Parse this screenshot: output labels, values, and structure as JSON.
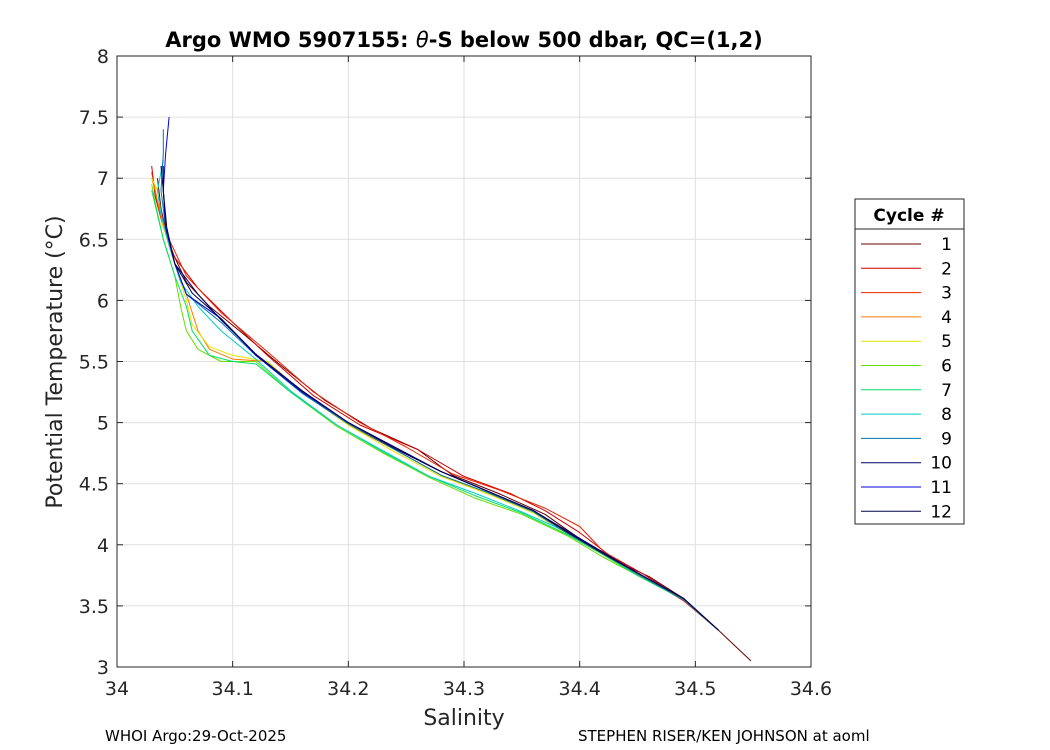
{
  "chart_data": {
    "type": "line",
    "title_prefix": "Argo WMO 5907155: ",
    "title_theta": "θ",
    "title_suffix": "-S below 500 dbar,  QC=(1,2)",
    "xlabel": "Salinity",
    "ylabel": "Potential Temperature (°C)",
    "xlim": [
      34.0,
      34.6
    ],
    "ylim": [
      3.0,
      8.0
    ],
    "xticks": [
      34.0,
      34.1,
      34.2,
      34.3,
      34.4,
      34.5,
      34.6
    ],
    "xtick_labels": [
      "34",
      "34.1",
      "34.2",
      "34.3",
      "34.4",
      "34.5",
      "34.6"
    ],
    "yticks": [
      3.0,
      3.5,
      4.0,
      4.5,
      5.0,
      5.5,
      6.0,
      6.5,
      7.0,
      7.5,
      8.0
    ],
    "ytick_labels": [
      "3",
      "3.5",
      "4",
      "4.5",
      "5",
      "5.5",
      "6",
      "6.5",
      "7",
      "7.5",
      "8"
    ],
    "grid": true,
    "legend_title": "Cycle #",
    "legend_position": "outside-right",
    "series": [
      {
        "name": "1",
        "color": "#660000",
        "points": [
          [
            34.548,
            3.05
          ],
          [
            34.52,
            3.3
          ],
          [
            34.49,
            3.56
          ],
          [
            34.46,
            3.74
          ],
          [
            34.43,
            3.87
          ],
          [
            34.4,
            4.05
          ],
          [
            34.37,
            4.25
          ],
          [
            34.33,
            4.42
          ],
          [
            34.29,
            4.57
          ],
          [
            34.26,
            4.78
          ],
          [
            34.22,
            4.95
          ],
          [
            34.18,
            5.18
          ],
          [
            34.14,
            5.48
          ],
          [
            34.11,
            5.72
          ],
          [
            34.08,
            5.95
          ],
          [
            34.06,
            6.15
          ],
          [
            34.045,
            6.45
          ],
          [
            34.038,
            6.75
          ],
          [
            34.035,
            7.0
          ]
        ]
      },
      {
        "name": "2",
        "color": "#cc0000",
        "points": [
          [
            34.52,
            3.3
          ],
          [
            34.49,
            3.55
          ],
          [
            34.455,
            3.76
          ],
          [
            34.425,
            3.92
          ],
          [
            34.4,
            4.1
          ],
          [
            34.37,
            4.28
          ],
          [
            34.34,
            4.42
          ],
          [
            34.3,
            4.56
          ],
          [
            34.26,
            4.78
          ],
          [
            34.21,
            4.98
          ],
          [
            34.17,
            5.22
          ],
          [
            34.13,
            5.55
          ],
          [
            34.1,
            5.82
          ],
          [
            34.07,
            6.1
          ],
          [
            34.05,
            6.35
          ],
          [
            34.04,
            6.6
          ],
          [
            34.033,
            6.85
          ],
          [
            34.03,
            7.1
          ]
        ]
      },
      {
        "name": "3",
        "color": "#ee2200",
        "points": [
          [
            34.52,
            3.3
          ],
          [
            34.49,
            3.54
          ],
          [
            34.45,
            3.77
          ],
          [
            34.42,
            3.95
          ],
          [
            34.4,
            4.15
          ],
          [
            34.37,
            4.3
          ],
          [
            34.33,
            4.45
          ],
          [
            34.29,
            4.58
          ],
          [
            34.25,
            4.8
          ],
          [
            34.21,
            5.0
          ],
          [
            34.17,
            5.25
          ],
          [
            34.13,
            5.58
          ],
          [
            34.09,
            5.9
          ],
          [
            34.06,
            6.2
          ],
          [
            34.045,
            6.5
          ],
          [
            34.035,
            6.8
          ],
          [
            34.03,
            7.05
          ]
        ]
      },
      {
        "name": "4",
        "color": "#ff7700",
        "points": [
          [
            34.52,
            3.3
          ],
          [
            34.49,
            3.55
          ],
          [
            34.45,
            3.76
          ],
          [
            34.42,
            3.94
          ],
          [
            34.39,
            4.1
          ],
          [
            34.36,
            4.28
          ],
          [
            34.32,
            4.42
          ],
          [
            34.28,
            4.57
          ],
          [
            34.24,
            4.78
          ],
          [
            34.2,
            4.98
          ],
          [
            34.16,
            5.25
          ],
          [
            34.13,
            5.5
          ],
          [
            34.1,
            5.52
          ],
          [
            34.08,
            5.6
          ],
          [
            34.07,
            5.75
          ],
          [
            34.065,
            5.9
          ],
          [
            34.06,
            6.05
          ],
          [
            34.05,
            6.3
          ],
          [
            34.04,
            6.6
          ],
          [
            34.033,
            6.9
          ],
          [
            34.03,
            7.0
          ]
        ]
      },
      {
        "name": "5",
        "color": "#e6e600",
        "points": [
          [
            34.52,
            3.3
          ],
          [
            34.49,
            3.55
          ],
          [
            34.45,
            3.75
          ],
          [
            34.42,
            3.92
          ],
          [
            34.39,
            4.08
          ],
          [
            34.36,
            4.26
          ],
          [
            34.32,
            4.42
          ],
          [
            34.28,
            4.56
          ],
          [
            34.24,
            4.76
          ],
          [
            34.2,
            4.98
          ],
          [
            34.16,
            5.25
          ],
          [
            34.13,
            5.5
          ],
          [
            34.1,
            5.55
          ],
          [
            34.08,
            5.62
          ],
          [
            34.065,
            5.8
          ],
          [
            34.06,
            6.0
          ],
          [
            34.05,
            6.3
          ],
          [
            34.04,
            6.6
          ],
          [
            34.035,
            6.9
          ],
          [
            34.03,
            7.0
          ]
        ]
      },
      {
        "name": "6",
        "color": "#66dd00",
        "points": [
          [
            34.52,
            3.3
          ],
          [
            34.49,
            3.55
          ],
          [
            34.45,
            3.75
          ],
          [
            34.42,
            3.9
          ],
          [
            34.39,
            4.07
          ],
          [
            34.35,
            4.25
          ],
          [
            34.31,
            4.38
          ],
          [
            34.27,
            4.55
          ],
          [
            34.23,
            4.75
          ],
          [
            34.19,
            4.97
          ],
          [
            34.15,
            5.25
          ],
          [
            34.12,
            5.5
          ],
          [
            34.09,
            5.5
          ],
          [
            34.07,
            5.6
          ],
          [
            34.06,
            5.75
          ],
          [
            34.055,
            5.95
          ],
          [
            34.05,
            6.2
          ],
          [
            34.04,
            6.5
          ],
          [
            34.033,
            6.8
          ],
          [
            34.03,
            6.95
          ]
        ]
      },
      {
        "name": "7",
        "color": "#00dd66",
        "points": [
          [
            34.52,
            3.3
          ],
          [
            34.49,
            3.55
          ],
          [
            34.45,
            3.75
          ],
          [
            34.42,
            3.92
          ],
          [
            34.39,
            4.08
          ],
          [
            34.35,
            4.26
          ],
          [
            34.31,
            4.4
          ],
          [
            34.27,
            4.56
          ],
          [
            34.23,
            4.76
          ],
          [
            34.19,
            4.98
          ],
          [
            34.15,
            5.25
          ],
          [
            34.12,
            5.48
          ],
          [
            34.1,
            5.5
          ],
          [
            34.08,
            5.55
          ],
          [
            34.065,
            5.75
          ],
          [
            34.06,
            5.95
          ],
          [
            34.05,
            6.2
          ],
          [
            34.04,
            6.5
          ],
          [
            34.035,
            6.7
          ],
          [
            34.03,
            6.9
          ]
        ]
      },
      {
        "name": "8",
        "color": "#00cccc",
        "points": [
          [
            34.52,
            3.3
          ],
          [
            34.49,
            3.55
          ],
          [
            34.45,
            3.77
          ],
          [
            34.42,
            3.93
          ],
          [
            34.39,
            4.1
          ],
          [
            34.35,
            4.27
          ],
          [
            34.31,
            4.42
          ],
          [
            34.27,
            4.56
          ],
          [
            34.23,
            4.77
          ],
          [
            34.19,
            4.98
          ],
          [
            34.15,
            5.26
          ],
          [
            34.12,
            5.52
          ],
          [
            34.09,
            5.75
          ],
          [
            34.07,
            5.95
          ],
          [
            34.055,
            6.15
          ],
          [
            34.045,
            6.45
          ],
          [
            34.038,
            6.7
          ],
          [
            34.035,
            6.9
          ],
          [
            34.04,
            7.15
          ]
        ]
      },
      {
        "name": "9",
        "color": "#0077aa",
        "points": [
          [
            34.52,
            3.3
          ],
          [
            34.49,
            3.55
          ],
          [
            34.45,
            3.76
          ],
          [
            34.42,
            3.93
          ],
          [
            34.39,
            4.09
          ],
          [
            34.36,
            4.27
          ],
          [
            34.32,
            4.43
          ],
          [
            34.28,
            4.57
          ],
          [
            34.24,
            4.78
          ],
          [
            34.2,
            4.99
          ],
          [
            34.16,
            5.24
          ],
          [
            34.12,
            5.55
          ],
          [
            34.09,
            5.82
          ],
          [
            34.06,
            6.05
          ],
          [
            34.05,
            6.3
          ],
          [
            34.042,
            6.6
          ],
          [
            34.038,
            6.9
          ],
          [
            34.04,
            7.2
          ],
          [
            34.04,
            7.4
          ]
        ]
      },
      {
        "name": "10",
        "color": "#000066",
        "points": [
          [
            34.52,
            3.3
          ],
          [
            34.49,
            3.56
          ],
          [
            34.45,
            3.77
          ],
          [
            34.42,
            3.94
          ],
          [
            34.39,
            4.11
          ],
          [
            34.36,
            4.28
          ],
          [
            34.32,
            4.44
          ],
          [
            34.28,
            4.6
          ],
          [
            34.24,
            4.8
          ],
          [
            34.2,
            5.0
          ],
          [
            34.16,
            5.26
          ],
          [
            34.12,
            5.56
          ],
          [
            34.09,
            5.84
          ],
          [
            34.07,
            6.05
          ],
          [
            34.05,
            6.3
          ],
          [
            34.042,
            6.6
          ],
          [
            34.04,
            6.9
          ],
          [
            34.038,
            7.1
          ]
        ]
      },
      {
        "name": "11",
        "color": "#0000dd",
        "points": [
          [
            34.52,
            3.3
          ],
          [
            34.49,
            3.56
          ],
          [
            34.45,
            3.77
          ],
          [
            34.42,
            3.93
          ],
          [
            34.39,
            4.1
          ],
          [
            34.36,
            4.28
          ],
          [
            34.32,
            4.44
          ],
          [
            34.28,
            4.6
          ],
          [
            34.24,
            4.79
          ],
          [
            34.2,
            5.0
          ],
          [
            34.16,
            5.25
          ],
          [
            34.12,
            5.55
          ],
          [
            34.09,
            5.85
          ],
          [
            34.06,
            6.05
          ],
          [
            34.05,
            6.3
          ],
          [
            34.042,
            6.6
          ],
          [
            34.04,
            6.9
          ],
          [
            34.042,
            7.2
          ],
          [
            34.045,
            7.5
          ]
        ]
      },
      {
        "name": "12",
        "color": "#000044",
        "points": [
          [
            34.52,
            3.3
          ],
          [
            34.49,
            3.56
          ],
          [
            34.45,
            3.77
          ],
          [
            34.42,
            3.93
          ],
          [
            34.39,
            4.1
          ],
          [
            34.36,
            4.28
          ],
          [
            34.32,
            4.44
          ],
          [
            34.28,
            4.6
          ],
          [
            34.24,
            4.79
          ],
          [
            34.2,
            5.0
          ],
          [
            34.16,
            5.26
          ],
          [
            34.12,
            5.56
          ],
          [
            34.09,
            5.85
          ],
          [
            34.065,
            6.06
          ],
          [
            34.05,
            6.3
          ],
          [
            34.043,
            6.6
          ],
          [
            34.04,
            6.9
          ],
          [
            34.04,
            7.1
          ]
        ]
      }
    ]
  },
  "footer": {
    "left": "WHOI Argo:29-Oct-2025",
    "right": "STEPHEN RISER/KEN JOHNSON at aoml"
  }
}
